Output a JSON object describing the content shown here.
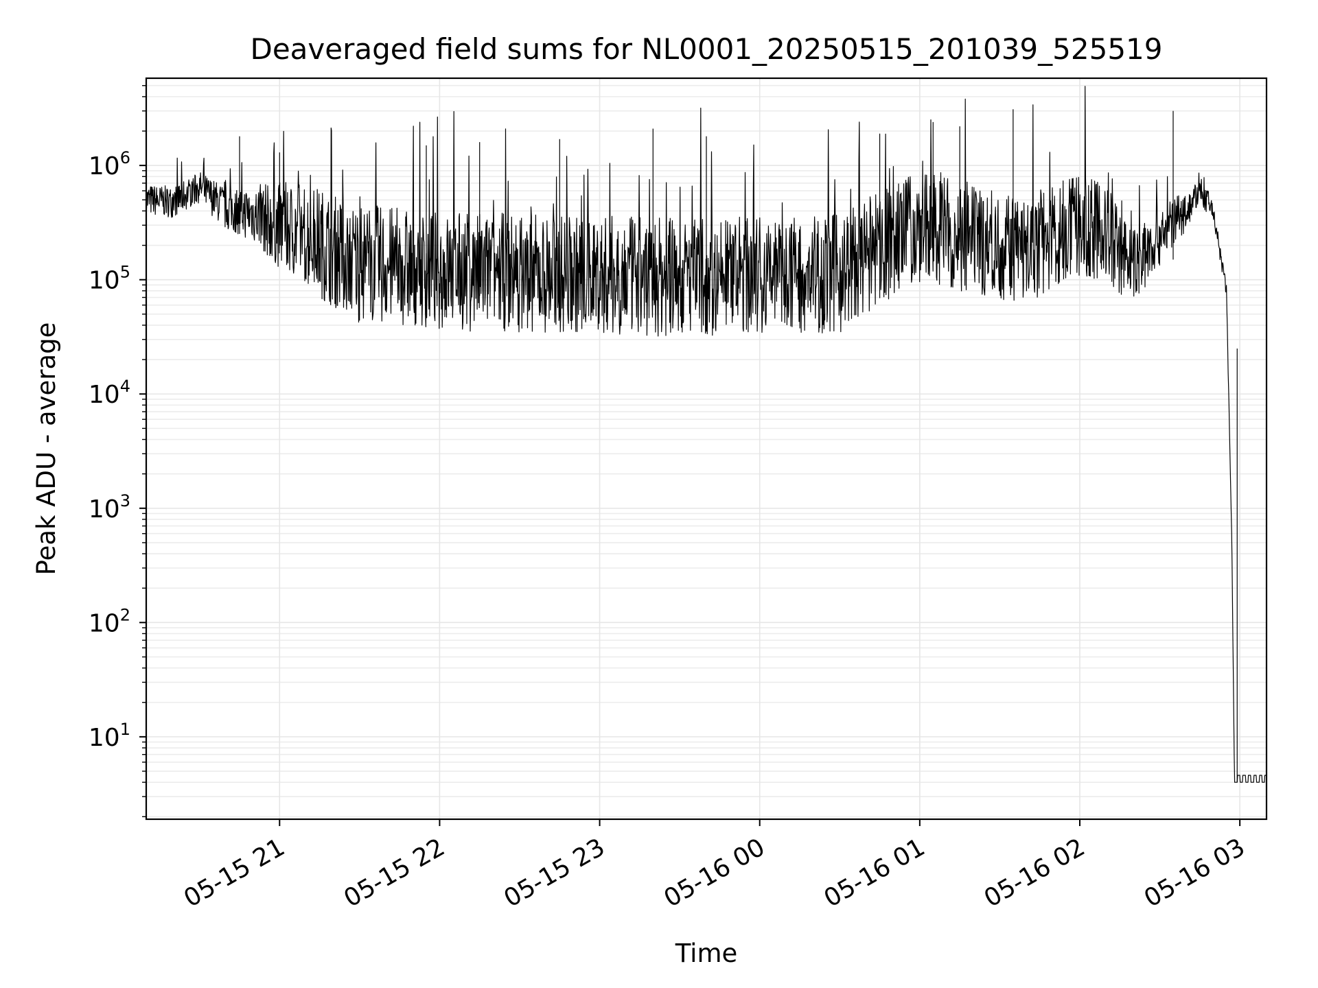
{
  "chart_data": {
    "type": "line",
    "title": "Deaveraged field sums for NL0001_20250515_201039_525519",
    "xlabel": "Time",
    "ylabel": "Peak ADU - average",
    "yscale": "log",
    "ylim": [
      1.9,
      5800000
    ],
    "xlim": [
      "2025-05-15 20:10",
      "2025-05-16 03:10"
    ],
    "grid": true,
    "x_ticks": [
      "05-15 21",
      "05-15 22",
      "05-15 23",
      "05-16 00",
      "05-16 01",
      "05-16 02",
      "05-16 03"
    ],
    "y_ticks": [
      {
        "base": "10",
        "exp": "1",
        "value": 10
      },
      {
        "base": "10",
        "exp": "2",
        "value": 100
      },
      {
        "base": "10",
        "exp": "3",
        "value": 1000
      },
      {
        "base": "10",
        "exp": "4",
        "value": 10000
      },
      {
        "base": "10",
        "exp": "5",
        "value": 100000
      },
      {
        "base": "10",
        "exp": "6",
        "value": 1000000
      }
    ],
    "line_color": "#000000",
    "series": [
      {
        "description": "Noisy positive time series, sampled ~every minute",
        "x": [
          "2025-05-15 20:10",
          "2025-05-15 20:20",
          "2025-05-15 20:30",
          "2025-05-15 20:40",
          "2025-05-15 20:50",
          "2025-05-15 21:00",
          "2025-05-15 21:10",
          "2025-05-15 21:20",
          "2025-05-15 21:30",
          "2025-05-15 21:45",
          "2025-05-15 22:00",
          "2025-05-15 22:30",
          "2025-05-15 23:00",
          "2025-05-15 23:30",
          "2025-05-16 00:00",
          "2025-05-16 00:30",
          "2025-05-16 01:00",
          "2025-05-16 01:20",
          "2025-05-16 01:40",
          "2025-05-16 02:00",
          "2025-05-16 02:10",
          "2025-05-16 02:20",
          "2025-05-16 02:30",
          "2025-05-16 02:40",
          "2025-05-16 02:45",
          "2025-05-16 02:50",
          "2025-05-16 02:55",
          "2025-05-16 02:57",
          "2025-05-16 02:58",
          "2025-05-16 03:10"
        ],
        "median": [
          500000,
          480000,
          650000,
          420000,
          380000,
          300000,
          250000,
          180000,
          140000,
          130000,
          120000,
          115000,
          110000,
          105000,
          110000,
          115000,
          300000,
          220000,
          180000,
          300000,
          250000,
          130000,
          250000,
          400000,
          600000,
          400000,
          80000,
          500,
          4,
          4
        ],
        "spread": [
          0.25,
          0.25,
          0.25,
          0.35,
          0.45,
          0.7,
          0.85,
          0.9,
          0.95,
          0.95,
          0.95,
          0.95,
          0.95,
          0.95,
          0.95,
          0.95,
          0.9,
          0.85,
          0.85,
          0.8,
          0.8,
          0.6,
          0.5,
          0.3,
          0.2,
          0.2,
          0.1,
          0,
          0,
          0
        ]
      }
    ],
    "spikes": [
      {
        "x": "2025-05-15 20:45",
        "y": 1800000
      },
      {
        "x": "2025-05-15 21:00",
        "y": 1300000
      },
      {
        "x": "2025-05-15 21:55",
        "y": 1500000
      },
      {
        "x": "2025-05-15 22:15",
        "y": 1600000
      },
      {
        "x": "2025-05-15 22:45",
        "y": 1700000
      },
      {
        "x": "2025-05-15 23:20",
        "y": 2100000
      },
      {
        "x": "2025-05-15 23:40",
        "y": 1800000
      },
      {
        "x": "2025-05-16 00:45",
        "y": 1900000
      },
      {
        "x": "2025-05-16 01:05",
        "y": 2400000
      },
      {
        "x": "2025-05-16 01:15",
        "y": 2200000
      },
      {
        "x": "2025-05-16 01:35",
        "y": 3100000
      },
      {
        "x": "2025-05-16 02:35",
        "y": 3000000
      },
      {
        "x": "2025-05-16 02:59",
        "y": 25000
      }
    ]
  }
}
